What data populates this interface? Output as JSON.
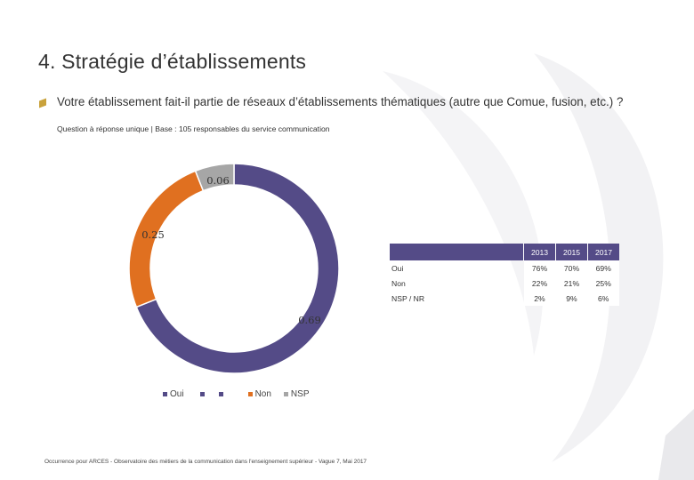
{
  "page": {
    "title": "4. Stratégie d’établissements",
    "question": "Votre établissement fait-il partie de réseaux d’établissements thématiques (autre que Comue, fusion, etc.) ?",
    "subtitle": "Question à réponse unique | Base : 105 responsables du service communication",
    "footer": "Occurrence pour ARCES - Observatoire des métiers de la communication dans l'enseignement supérieur - Vague 7, Mai 2017"
  },
  "chart_data": {
    "type": "pie",
    "variant": "donut",
    "categories": [
      "Oui",
      "Non",
      "NSP"
    ],
    "values": [
      0.69,
      0.25,
      0.06
    ],
    "data_labels": [
      "0.69",
      "0.25",
      "0.06"
    ],
    "colors": [
      "#544b87",
      "#e07020",
      "#a6a6a6"
    ],
    "legend": {
      "position": "bottom",
      "entries": [
        {
          "label": "Oui",
          "color": "#544b87"
        },
        {
          "label": "",
          "color": "#544b87"
        },
        {
          "label": "",
          "color": "#544b87"
        },
        {
          "label": "Non",
          "color": "#e07020"
        },
        {
          "label": "NSP",
          "color": "#a6a6a6"
        }
      ]
    }
  },
  "table": {
    "headers": [
      "",
      "2013",
      "2015",
      "2017"
    ],
    "rows": [
      {
        "label": "Oui",
        "values": [
          "76%",
          "70%",
          "69%"
        ]
      },
      {
        "label": "Non",
        "values": [
          "22%",
          "21%",
          "25%"
        ]
      },
      {
        "label": "NSP / NR",
        "values": [
          "2%",
          "9%",
          "6%"
        ]
      }
    ]
  }
}
